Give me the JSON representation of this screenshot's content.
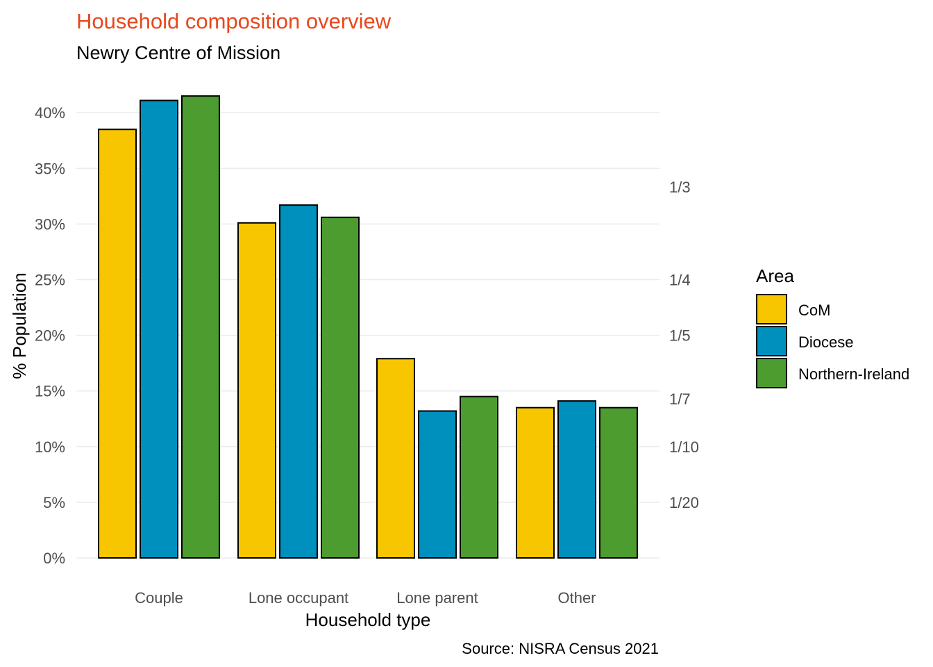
{
  "chart_data": {
    "type": "bar",
    "title": "Household composition overview",
    "subtitle": "Newry Centre of Mission",
    "xlabel": "Household type",
    "ylabel": "% Population",
    "caption": "Source: NISRA Census 2021",
    "categories": [
      "Couple",
      "Lone occupant",
      "Lone parent",
      "Other"
    ],
    "series": [
      {
        "name": "CoM",
        "color": "#F7C600",
        "values": [
          38.5,
          30.1,
          17.9,
          13.5
        ]
      },
      {
        "name": "Diocese",
        "color": "#0090BD",
        "values": [
          41.1,
          31.7,
          13.2,
          14.1
        ]
      },
      {
        "name": "Northern-Ireland",
        "color": "#4D9C30",
        "values": [
          41.5,
          30.6,
          14.5,
          13.5
        ]
      }
    ],
    "ylim": [
      0,
      42
    ],
    "yticks": [
      0,
      5,
      10,
      15,
      20,
      25,
      30,
      35,
      40
    ],
    "ytick_labels": [
      "0%",
      "5%",
      "10%",
      "15%",
      "20%",
      "25%",
      "30%",
      "35%",
      "40%"
    ],
    "secondary_axis": {
      "ticks": [
        33.333,
        25,
        20,
        14.286,
        10,
        5
      ],
      "labels": [
        "1/3",
        "1/4",
        "1/5",
        "1/7",
        "1/10",
        "1/20"
      ]
    },
    "legend": {
      "title": "Area",
      "position": "right"
    },
    "grid": true,
    "title_color": "#E8471C"
  }
}
